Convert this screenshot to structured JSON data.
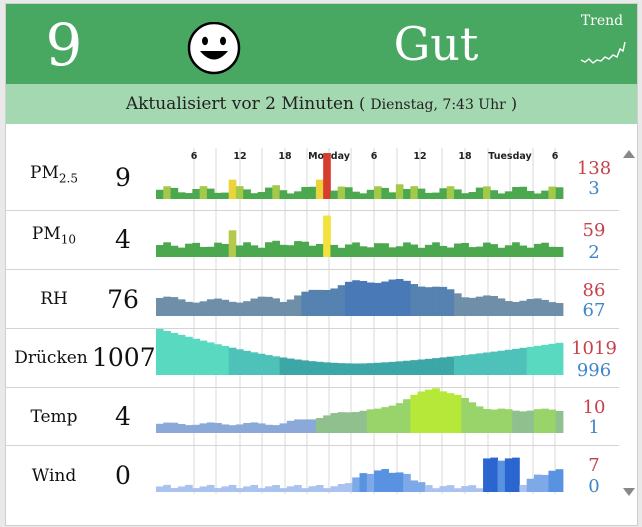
{
  "header": {
    "aqi_value": "9",
    "status": "Gut",
    "trend_label": "Trend",
    "header_color": "#48a862"
  },
  "subheader": {
    "text": "Aktualisiert vor 2 Minuten",
    "paren_open": "(",
    "timestamp": "Dienstag, 7:43 Uhr",
    "paren_close": ")"
  },
  "axis": {
    "labels": [
      "6",
      "12",
      "18",
      "Monday",
      "6",
      "12",
      "18",
      "Tuesday",
      "6"
    ]
  },
  "rows": [
    {
      "name": "pm25",
      "label": "PM",
      "sub": "2.5",
      "value": "9",
      "max": "138",
      "min": "3"
    },
    {
      "name": "pm10",
      "label": "PM",
      "sub": "10",
      "value": "4",
      "max": "59",
      "min": "2"
    },
    {
      "name": "rh",
      "label": "RH",
      "sub": "",
      "value": "76",
      "max": "86",
      "min": "67"
    },
    {
      "name": "druecken",
      "label": "Drücken",
      "sub": "",
      "value": "1007",
      "max": "1019",
      "min": "996"
    },
    {
      "name": "temp",
      "label": "Temp",
      "sub": "",
      "value": "4",
      "max": "10",
      "min": "1"
    },
    {
      "name": "wind",
      "label": "Wind",
      "sub": "",
      "value": "0",
      "max": "7",
      "min": "0"
    }
  ],
  "icons": {
    "face": "smiley-face-icon",
    "trend": "trend-sparkline-icon",
    "scroll_up": "scroll-up-icon",
    "scroll_down": "scroll-down-icon"
  }
}
